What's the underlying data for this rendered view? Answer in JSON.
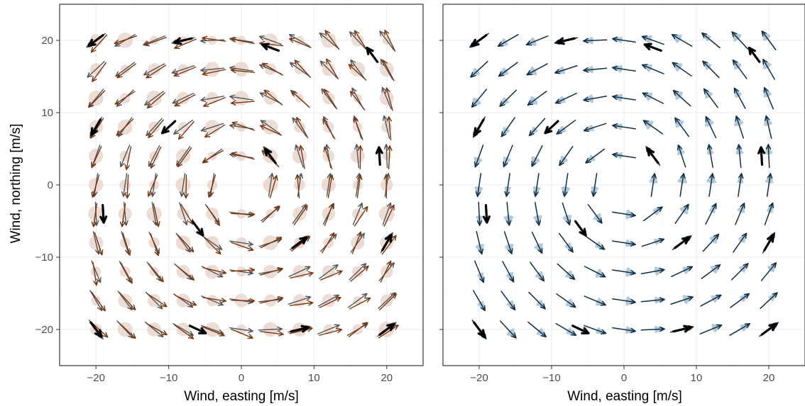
{
  "colors": {
    "panel_border": "#333333",
    "grid_major": "#ebebeb",
    "grid_minor": "#f5f5f5",
    "highlight_arrow": "#000000",
    "left_dark_arrow": "#555555",
    "left_brown_arrow": "#7a3510",
    "left_uncertainty": "#e7d3c9",
    "right_arrow": "#0f2e45",
    "right_uncertainty": "#9ab7c9"
  },
  "chart_data": [
    {
      "type": "quiver",
      "panel": "left",
      "xlabel": "Wind, easting [m/s]",
      "ylabel": "Wind, northing [m/s]",
      "xlim": [
        -25,
        25
      ],
      "ylim": [
        -25,
        25
      ],
      "xticks": [
        -20,
        -10,
        0,
        10,
        20
      ],
      "yticks": [
        -20,
        -10,
        0,
        10,
        20
      ],
      "x_tick_labels": [
        "−20",
        "−10",
        "0",
        "10",
        "20"
      ],
      "y_tick_labels": [
        "−20",
        "−10",
        "0",
        "10",
        "20"
      ],
      "grid": true,
      "field": "wind vectors pointing ~90° counter-clockwise of the position vector (rotating field), dark grey = estimate, brown = alternative estimate, shaded circles = uncertainty",
      "highlighted_vectors": [
        {
          "x": -20,
          "y": 20
        },
        {
          "x": -8,
          "y": 20
        },
        {
          "x": 4,
          "y": 19
        },
        {
          "x": 18,
          "y": 18
        },
        {
          "x": -20,
          "y": 8
        },
        {
          "x": -10,
          "y": 8
        },
        {
          "x": 4,
          "y": 4
        },
        {
          "x": 19,
          "y": 4
        },
        {
          "x": -19,
          "y": -4
        },
        {
          "x": -6,
          "y": -6
        },
        {
          "x": 8,
          "y": -8
        },
        {
          "x": 20,
          "y": -8
        },
        {
          "x": -20,
          "y": -20
        },
        {
          "x": -6,
          "y": -20
        },
        {
          "x": 8,
          "y": -20
        },
        {
          "x": 20,
          "y": -20
        }
      ]
    },
    {
      "type": "quiver",
      "panel": "right",
      "xlabel": "Wind, easting [m/s]",
      "xlim": [
        -25,
        25
      ],
      "ylim": [
        -25,
        25
      ],
      "xticks": [
        -20,
        -10,
        0,
        10,
        20
      ],
      "x_tick_labels": [
        "−20",
        "−10",
        "0",
        "10",
        "20"
      ],
      "grid": true,
      "field": "wind vectors pointing ~90° counter-clockwise of the position vector (rotating field), shaded wedges = directional uncertainty",
      "highlighted_vectors": [
        {
          "x": -20,
          "y": 20
        },
        {
          "x": -8,
          "y": 20
        },
        {
          "x": 4,
          "y": 19
        },
        {
          "x": 18,
          "y": 18
        },
        {
          "x": -20,
          "y": 8
        },
        {
          "x": -10,
          "y": 8
        },
        {
          "x": 4,
          "y": 4
        },
        {
          "x": 19,
          "y": 4
        },
        {
          "x": -19,
          "y": -4
        },
        {
          "x": -6,
          "y": -6
        },
        {
          "x": 8,
          "y": -8
        },
        {
          "x": 20,
          "y": -8
        },
        {
          "x": -20,
          "y": -20
        },
        {
          "x": -6,
          "y": -20
        },
        {
          "x": 8,
          "y": -20
        },
        {
          "x": 20,
          "y": -20
        }
      ]
    }
  ]
}
